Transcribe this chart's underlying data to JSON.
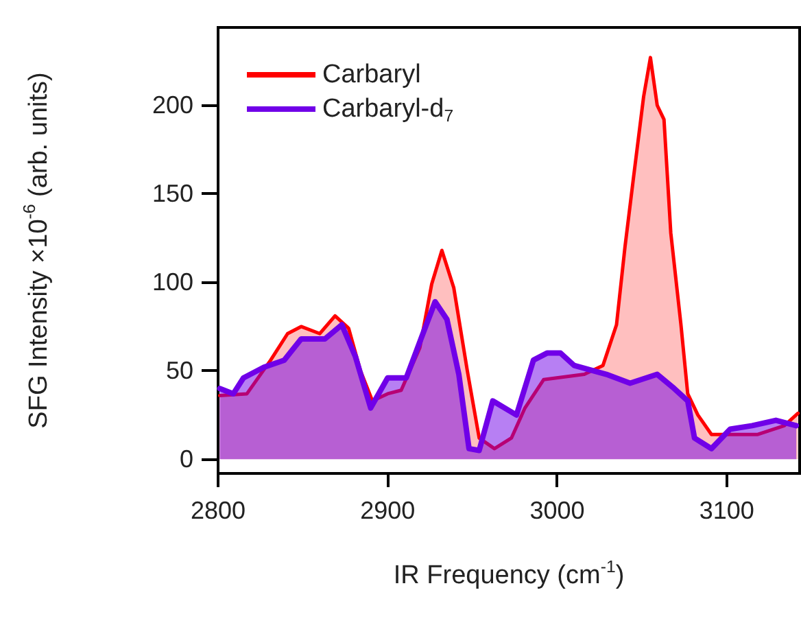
{
  "chart_data": {
    "type": "area",
    "xlabel": "IR Frequency (cm$^{-1}$)",
    "ylabel": "SFG Intensity ×10$^{-6}$ (arb. units)",
    "xlim": [
      2800,
      3143
    ],
    "xticks": [
      2800,
      2900,
      3000,
      3100
    ],
    "ylim": [
      -8,
      244
    ],
    "yticks": [
      0,
      50,
      100,
      150,
      200
    ],
    "grid": false,
    "legend": "top left",
    "marker": "none",
    "line_style": "solid",
    "series": [
      {
        "name": "Carbaryl",
        "color": "#ff0000",
        "x": [
          2801,
          2817,
          2831,
          2841,
          2849,
          2860,
          2869,
          2877,
          2884,
          2891,
          2900,
          2908,
          2919,
          2926,
          2932,
          2939,
          2947,
          2954,
          2963,
          2973,
          2981,
          2992,
          3016,
          3027,
          3035,
          3040,
          3045,
          3051,
          3055,
          3059,
          3063,
          3067,
          3073,
          3077,
          3083,
          3091,
          3105,
          3118,
          3134,
          3142
        ],
        "values": [
          36,
          37,
          56,
          71,
          75,
          71,
          81,
          74,
          50,
          33,
          37,
          39,
          63,
          99,
          118,
          97,
          50,
          12,
          6,
          12,
          29,
          45,
          48,
          53,
          76,
          120,
          159,
          205,
          227,
          200,
          192,
          128,
          76,
          37,
          25,
          14,
          14,
          14,
          19,
          26
        ]
      },
      {
        "name": "Carbaryl-d$_{7}$",
        "color": "#7000e8",
        "x": [
          2801,
          2809,
          2815,
          2827,
          2839,
          2849,
          2863,
          2873,
          2881,
          2890,
          2900,
          2911,
          2922,
          2928,
          2935,
          2942,
          2948,
          2954,
          2962,
          2976,
          2986,
          2994,
          3002,
          3010,
          3029,
          3043,
          3059,
          3069,
          3077,
          3081,
          3091,
          3102,
          3115,
          3129,
          3141
        ],
        "values": [
          40,
          37,
          46,
          52,
          56,
          68,
          68,
          76,
          58,
          29,
          46,
          46,
          74,
          89,
          79,
          48,
          6,
          5,
          33,
          25,
          56,
          60,
          60,
          53,
          48,
          43,
          48,
          40,
          33,
          12,
          6,
          17,
          19,
          22,
          19
        ]
      }
    ]
  }
}
